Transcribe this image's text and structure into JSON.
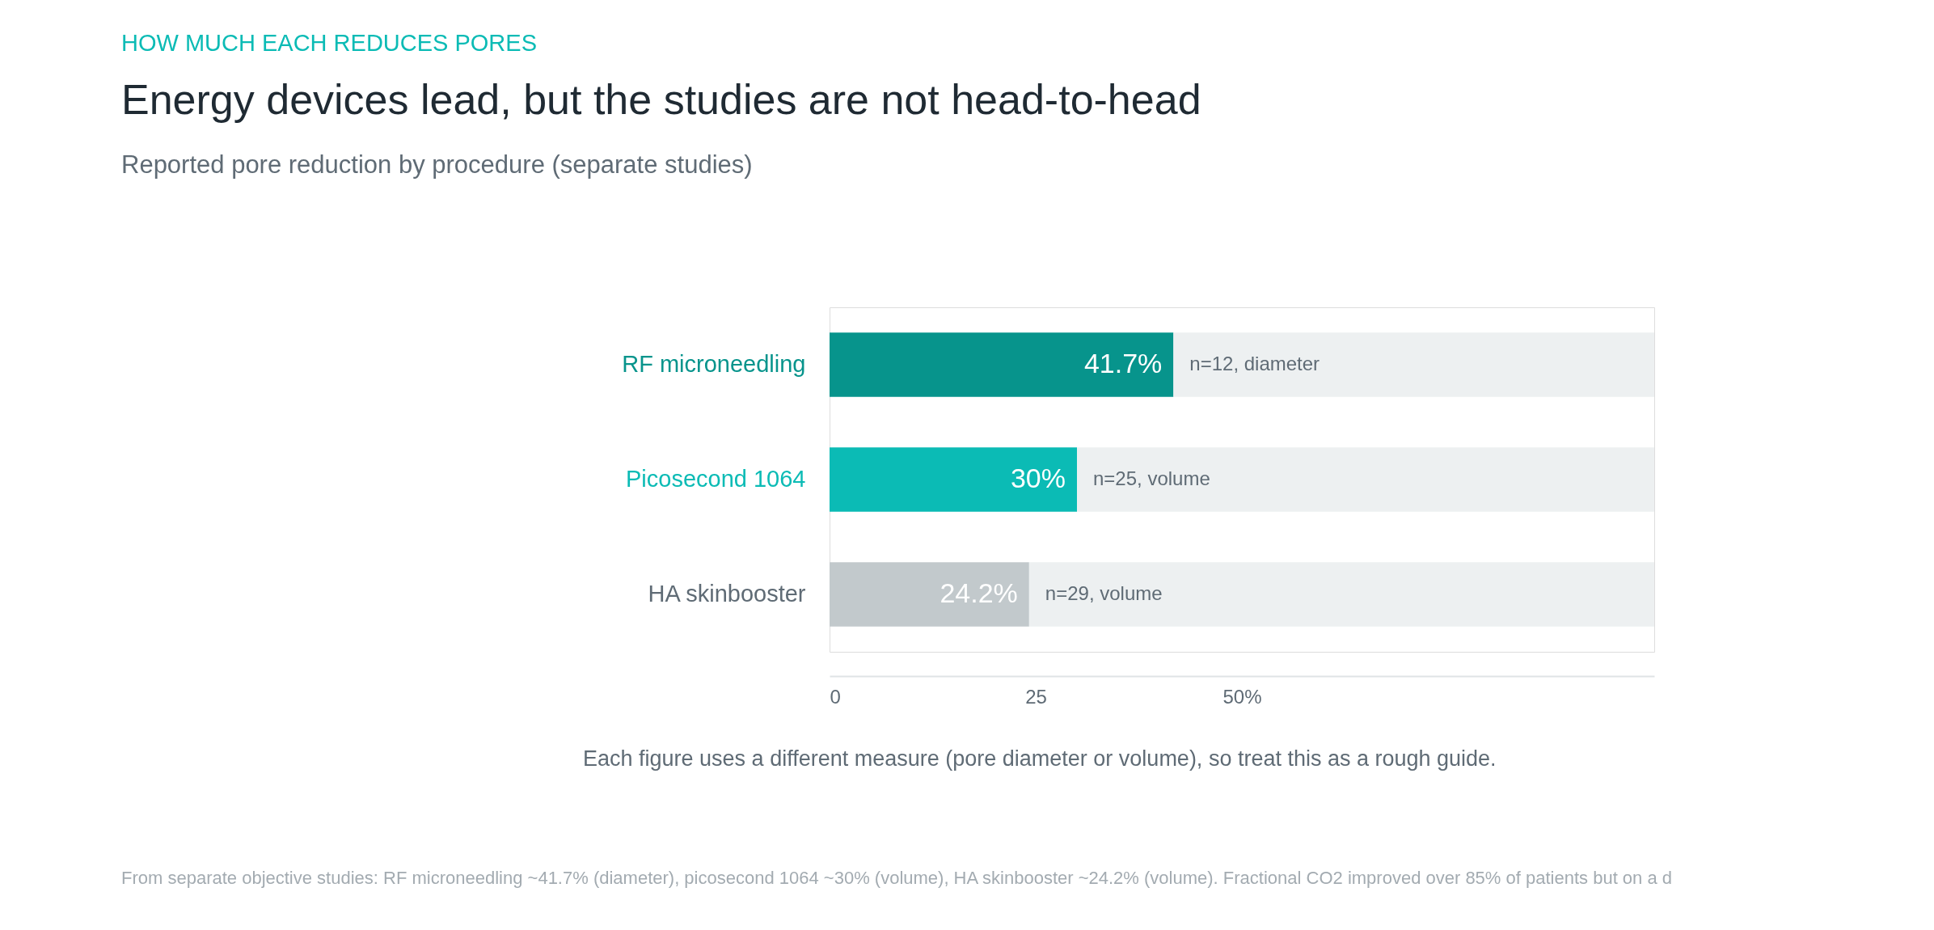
{
  "chart_data": {
    "type": "bar",
    "orientation": "horizontal",
    "stacked": true,
    "title": "Energy devices lead, but the studies are not head-to-head",
    "subtitle": "Reported pore reduction by procedure (separate studies)",
    "categories": [
      "RF microneedling",
      "Picosecond 1064",
      "HA skinbooster"
    ],
    "series": [
      {
        "colors": [
          "#07948c",
          "#0bbbb5",
          "#c2c9cc"
        ],
        "values": [
          41.7,
          30,
          24.2
        ],
        "value_labels": [
          "41.7%",
          "30%",
          "24.2%"
        ]
      },
      {
        "color": "#edf0f1",
        "values": [
          58.3,
          70,
          75.8
        ]
      }
    ],
    "xlim": [
      0,
      100
    ],
    "xticks": [
      0,
      25,
      {
        "value": 50,
        "label": "50%"
      }
    ],
    "grid": false,
    "annotations": [
      "HOW MUCH EACH REDUCES PORES",
      {
        "text": "n=12, diameter",
        "x": 41.7,
        "y": "RF microneedling"
      },
      {
        "text": "n=25, volume",
        "x": 30,
        "y": "Picosecond 1064"
      },
      {
        "text": "n=29, volume",
        "x": 24.2,
        "y": "HA skinbooster"
      },
      "Each figure uses a different measure (pore diameter or volume), so treat this as a rough guide.",
      "From separate objective studies: RF microneedling ~41.7% (diameter), picosecond 1064 ~30% (volume), HA skinbooster ~24.2% (volume). Fractional CO2 improved over 85% of patients but on a d"
    ]
  }
}
